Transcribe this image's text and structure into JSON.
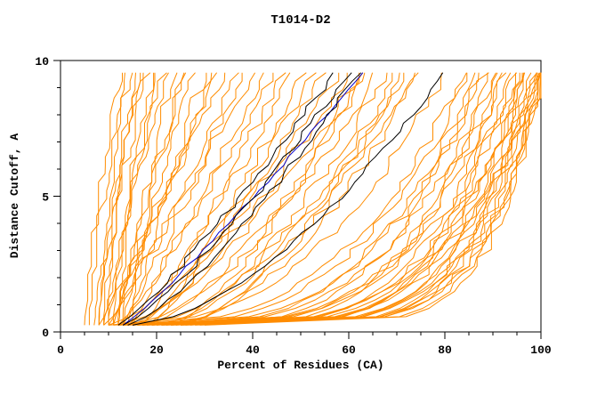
{
  "chart_data": {
    "type": "line",
    "title": "T1014-D2",
    "xlabel": "Percent of Residues (CA)",
    "ylabel": "Distance Cutoff, A",
    "xlim": [
      0,
      100
    ],
    "ylim": [
      0,
      10
    ],
    "xticks": [
      0,
      20,
      40,
      60,
      80,
      100
    ],
    "xminor_step": 5,
    "yticks": [
      0,
      5,
      10
    ],
    "yminor_step": 1,
    "grid": false,
    "legend": "none",
    "y_start": 0.25,
    "y_end": 9.55,
    "colors": {
      "ensemble": "#FF8C00",
      "highlight": "#000000",
      "reference": "#0000CD",
      "frame": "#000000",
      "background": "#FFFFFF"
    },
    "curve_spec_format": [
      "x_at_bottom_percent",
      "x_at_top_percent",
      "shape_exponent"
    ],
    "orange_curves": [
      [
        5,
        12,
        1.6
      ],
      [
        6,
        13,
        1.5
      ],
      [
        7,
        15,
        1.2
      ],
      [
        8,
        14,
        2.0
      ],
      [
        8,
        18,
        1.4
      ],
      [
        9,
        16,
        1.8
      ],
      [
        9,
        20,
        1.1
      ],
      [
        10,
        17,
        2.2
      ],
      [
        10,
        22,
        1.3
      ],
      [
        11,
        19,
        1.6
      ],
      [
        11,
        25,
        1.0
      ],
      [
        12,
        21,
        1.9
      ],
      [
        12,
        28,
        1.2
      ],
      [
        13,
        24,
        1.5
      ],
      [
        14,
        30,
        1.1
      ],
      [
        15,
        26,
        1.7
      ],
      [
        13,
        32,
        1.3
      ],
      [
        8,
        32,
        0.9
      ],
      [
        9,
        36,
        0.8
      ],
      [
        10,
        40,
        1.0
      ],
      [
        11,
        34,
        1.1
      ],
      [
        12,
        44,
        0.85
      ],
      [
        13,
        38,
        0.95
      ],
      [
        14,
        48,
        0.8
      ],
      [
        15,
        42,
        1.0
      ],
      [
        16,
        52,
        0.75
      ],
      [
        17,
        46,
        0.9
      ],
      [
        18,
        55,
        0.8
      ],
      [
        19,
        50,
        0.85
      ],
      [
        10,
        58,
        0.7
      ],
      [
        12,
        62,
        0.65
      ],
      [
        14,
        66,
        0.6
      ],
      [
        15,
        60,
        0.75
      ],
      [
        16,
        70,
        0.55
      ],
      [
        18,
        64,
        0.7
      ],
      [
        20,
        72,
        0.6
      ],
      [
        21,
        68,
        0.65
      ],
      [
        22,
        75,
        0.55
      ],
      [
        23,
        63,
        0.7
      ],
      [
        24,
        71,
        0.6
      ],
      [
        25,
        74,
        0.65
      ],
      [
        10,
        80,
        0.4
      ],
      [
        11,
        84,
        0.35
      ],
      [
        12,
        88,
        0.3
      ],
      [
        13,
        92,
        0.25
      ],
      [
        14,
        96,
        0.2
      ],
      [
        15,
        85,
        0.35
      ],
      [
        16,
        90,
        0.3
      ],
      [
        17,
        94,
        0.22
      ],
      [
        18,
        98,
        0.18
      ],
      [
        19,
        86,
        0.32
      ],
      [
        20,
        91,
        0.27
      ],
      [
        21,
        95,
        0.2
      ],
      [
        22,
        99,
        0.16
      ],
      [
        23,
        87,
        0.3
      ],
      [
        24,
        92,
        0.24
      ],
      [
        25,
        96,
        0.19
      ],
      [
        26,
        100,
        0.15
      ],
      [
        27,
        89,
        0.28
      ],
      [
        28,
        93,
        0.22
      ],
      [
        29,
        97,
        0.18
      ],
      [
        30,
        100,
        0.15
      ],
      [
        15,
        99,
        0.2
      ],
      [
        13,
        97,
        0.22
      ],
      [
        17,
        99,
        0.17
      ],
      [
        19,
        100,
        0.15
      ],
      [
        21,
        98,
        0.18
      ],
      [
        23,
        100,
        0.16
      ],
      [
        12,
        95,
        0.25
      ],
      [
        16,
        97,
        0.2
      ],
      [
        25,
        99,
        0.17
      ]
    ],
    "black_curves": [
      [
        12,
        57,
        0.85
      ],
      [
        13,
        60,
        0.8
      ],
      [
        14,
        62,
        0.75
      ],
      [
        15,
        80,
        0.6
      ]
    ],
    "blue_curves": [
      [
        13,
        63,
        0.9
      ]
    ],
    "jitter": {
      "orange": 1.3,
      "black": 0.8,
      "blue": 0.5
    },
    "seed": 1234
  }
}
